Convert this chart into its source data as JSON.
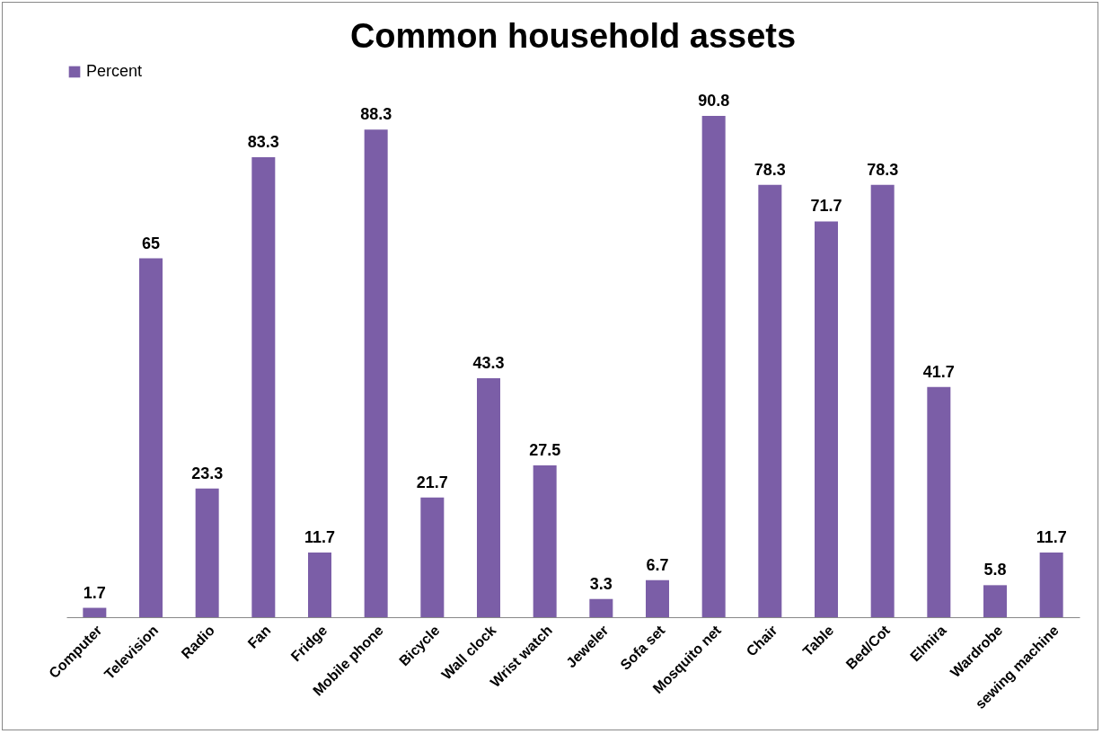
{
  "chart_data": {
    "type": "bar",
    "title": "Common household assets",
    "categories": [
      "Computer",
      "Television",
      "Radio",
      "Fan",
      "Fridge",
      "Mobile phone",
      "Bicycle",
      "Wall clock",
      "Wrist watch",
      "Jeweler",
      "Sofa set",
      "Mosquito net",
      "Chair",
      "Table",
      "Bed/Cot",
      "Elmira",
      "Wardrobe",
      "sewing machine"
    ],
    "series": [
      {
        "name": "Percent",
        "color": "#7b5ea7",
        "values": [
          1.7,
          65,
          23.3,
          83.3,
          11.7,
          88.3,
          21.7,
          43.3,
          27.5,
          3.3,
          6.7,
          90.8,
          78.3,
          71.7,
          78.3,
          41.7,
          5.8,
          11.7
        ]
      }
    ],
    "data_labels": true,
    "legend": "top",
    "grid": false
  }
}
